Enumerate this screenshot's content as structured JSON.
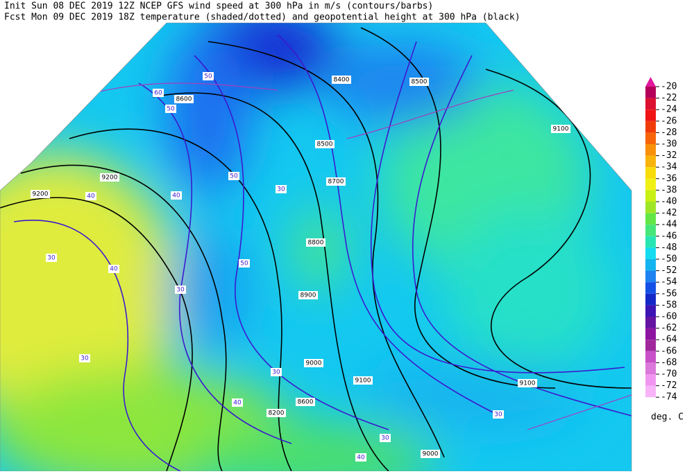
{
  "header": {
    "line1": "Init  Sun 08 DEC 2019 12Z  NCEP GFS wind speed at 300 hPa in m/s (contours/barbs)",
    "line2": "Fcst Mon 09 DEC 2019 18Z  temperature (shaded/dotted) and geopotential height at 300 hPa (black)"
  },
  "legend": {
    "levels": [
      -20,
      -22,
      -24,
      -26,
      -28,
      -30,
      -32,
      -34,
      -36,
      -38,
      -40,
      -42,
      -44,
      -46,
      -48,
      -50,
      -52,
      -54,
      -56,
      -58,
      -60,
      -62,
      -64,
      -66,
      -68,
      -70,
      -72,
      -74
    ],
    "colors": [
      "#e0189c",
      "#b4005a",
      "#dc1030",
      "#f01414",
      "#f03c0a",
      "#f8640a",
      "#f8900a",
      "#f8b40a",
      "#f8dc0a",
      "#f0f014",
      "#c8f014",
      "#a0e628",
      "#64e646",
      "#46e678",
      "#28e6b4",
      "#14dcf0",
      "#14b4f0",
      "#1e82f0",
      "#1450e6",
      "#1428c8",
      "#3c14b4",
      "#6414a0",
      "#8c14a0",
      "#a0289c",
      "#c850c8",
      "#dc78dc",
      "#f096f0",
      "#f8b4f8"
    ],
    "unit": "deg. C"
  },
  "map": {
    "height_labels": [
      "8400",
      "8500",
      "8500",
      "8600",
      "8700",
      "8800",
      "8900",
      "9000",
      "9100",
      "9100",
      "9100",
      "9200",
      "9200",
      "8200",
      "8600",
      "9000"
    ],
    "wind_labels": [
      "30",
      "30",
      "40",
      "40",
      "50",
      "50",
      "30",
      "30",
      "40",
      "50",
      "40",
      "30",
      "30",
      "40",
      "30",
      "50",
      "60"
    ]
  }
}
